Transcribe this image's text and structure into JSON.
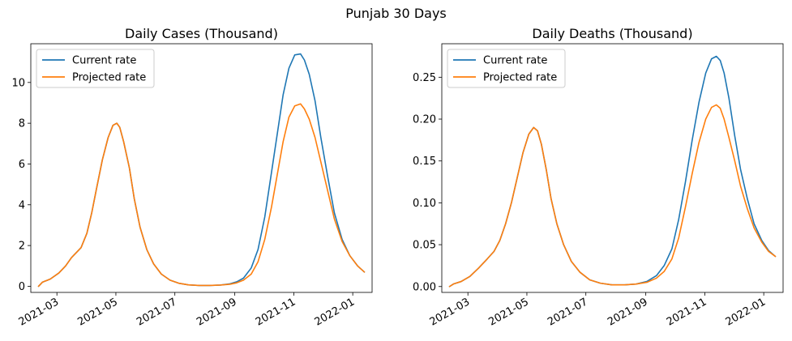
{
  "figure": {
    "suptitle": "Punjab 30 Days"
  },
  "colors": {
    "current": "#1f77b4",
    "projected": "#ff7f0e"
  },
  "chart_data": [
    {
      "type": "line",
      "title": "Daily Cases (Thousand)",
      "xlabel": "",
      "ylabel": "",
      "x_type": "date",
      "xlim": [
        "2021-02-02",
        "2022-01-21"
      ],
      "ylim": [
        -0.3,
        11.9
      ],
      "x_ticks": [
        "2021-03-01",
        "2021-05-01",
        "2021-07-01",
        "2021-09-01",
        "2021-11-01",
        "2022-01-01"
      ],
      "x_tick_labels": [
        "2021-03",
        "2021-05",
        "2021-07",
        "2021-09",
        "2021-11",
        "2022-01"
      ],
      "y_ticks": [
        0,
        2,
        4,
        6,
        8,
        10
      ],
      "y_tick_labels": [
        "0",
        "2",
        "4",
        "6",
        "8",
        "10"
      ],
      "legend": {
        "position": "top-left"
      },
      "grid": false,
      "series": [
        {
          "name": "Current rate",
          "x": [
            "2021-02-10",
            "2021-02-14",
            "2021-02-22",
            "2021-03-03",
            "2021-03-10",
            "2021-03-16",
            "2021-03-22",
            "2021-03-26",
            "2021-04-01",
            "2021-04-06",
            "2021-04-11",
            "2021-04-17",
            "2021-04-23",
            "2021-04-28",
            "2021-05-02",
            "2021-05-05",
            "2021-05-09",
            "2021-05-15",
            "2021-05-20",
            "2021-05-26",
            "2021-06-02",
            "2021-06-09",
            "2021-06-17",
            "2021-06-26",
            "2021-07-05",
            "2021-07-15",
            "2021-07-26",
            "2021-08-06",
            "2021-08-17",
            "2021-08-27",
            "2021-09-03",
            "2021-09-10",
            "2021-09-18",
            "2021-09-25",
            "2021-10-02",
            "2021-10-09",
            "2021-10-15",
            "2021-10-21",
            "2021-10-27",
            "2021-11-02",
            "2021-11-08",
            "2021-11-12",
            "2021-11-17",
            "2021-11-23",
            "2021-11-29",
            "2021-12-06",
            "2021-12-13",
            "2021-12-21",
            "2021-12-29",
            "2022-01-06",
            "2022-01-13"
          ],
          "values": [
            0.0,
            0.2,
            0.35,
            0.65,
            1.0,
            1.4,
            1.7,
            1.9,
            2.6,
            3.6,
            4.8,
            6.2,
            7.3,
            7.9,
            8.0,
            7.8,
            7.1,
            5.8,
            4.3,
            2.9,
            1.8,
            1.1,
            0.6,
            0.3,
            0.15,
            0.07,
            0.04,
            0.04,
            0.06,
            0.12,
            0.22,
            0.4,
            0.9,
            1.8,
            3.4,
            5.6,
            7.5,
            9.4,
            10.7,
            11.35,
            11.4,
            11.1,
            10.4,
            9.1,
            7.3,
            5.4,
            3.6,
            2.3,
            1.5,
            1.0,
            0.7
          ]
        },
        {
          "name": "Projected rate",
          "x": [
            "2021-02-10",
            "2021-02-14",
            "2021-02-22",
            "2021-03-03",
            "2021-03-10",
            "2021-03-16",
            "2021-03-22",
            "2021-03-26",
            "2021-04-01",
            "2021-04-06",
            "2021-04-11",
            "2021-04-17",
            "2021-04-23",
            "2021-04-28",
            "2021-05-02",
            "2021-05-05",
            "2021-05-09",
            "2021-05-15",
            "2021-05-20",
            "2021-05-26",
            "2021-06-02",
            "2021-06-09",
            "2021-06-17",
            "2021-06-26",
            "2021-07-05",
            "2021-07-15",
            "2021-07-26",
            "2021-08-06",
            "2021-08-17",
            "2021-08-27",
            "2021-09-03",
            "2021-09-10",
            "2021-09-18",
            "2021-09-25",
            "2021-10-02",
            "2021-10-09",
            "2021-10-15",
            "2021-10-21",
            "2021-10-27",
            "2021-11-02",
            "2021-11-08",
            "2021-11-12",
            "2021-11-17",
            "2021-11-23",
            "2021-11-29",
            "2021-12-06",
            "2021-12-13",
            "2021-12-21",
            "2021-12-29",
            "2022-01-06",
            "2022-01-13"
          ],
          "values": [
            0.0,
            0.2,
            0.35,
            0.65,
            1.0,
            1.4,
            1.7,
            1.9,
            2.6,
            3.6,
            4.8,
            6.2,
            7.3,
            7.9,
            8.0,
            7.8,
            7.1,
            5.8,
            4.3,
            2.9,
            1.8,
            1.1,
            0.6,
            0.3,
            0.15,
            0.07,
            0.04,
            0.04,
            0.06,
            0.1,
            0.17,
            0.3,
            0.6,
            1.2,
            2.3,
            3.9,
            5.5,
            7.1,
            8.3,
            8.85,
            8.95,
            8.7,
            8.2,
            7.3,
            6.1,
            4.7,
            3.3,
            2.2,
            1.5,
            1.0,
            0.7
          ]
        }
      ]
    },
    {
      "type": "line",
      "title": "Daily Deaths (Thousand)",
      "xlabel": "",
      "ylabel": "",
      "x_type": "date",
      "xlim": [
        "2021-02-02",
        "2022-01-21"
      ],
      "ylim": [
        -0.007,
        0.29
      ],
      "x_ticks": [
        "2021-03-01",
        "2021-05-01",
        "2021-07-01",
        "2021-09-01",
        "2021-11-01",
        "2022-01-01"
      ],
      "x_tick_labels": [
        "2021-03",
        "2021-05",
        "2021-07",
        "2021-09",
        "2021-11",
        "2022-01"
      ],
      "y_ticks": [
        0.0,
        0.05,
        0.1,
        0.15,
        0.2,
        0.25
      ],
      "y_tick_labels": [
        "0.00",
        "0.05",
        "0.10",
        "0.15",
        "0.20",
        "0.25"
      ],
      "legend": {
        "position": "top-left"
      },
      "grid": false,
      "series": [
        {
          "name": "Current rate",
          "x": [
            "2021-02-10",
            "2021-02-14",
            "2021-02-22",
            "2021-03-03",
            "2021-03-12",
            "2021-03-21",
            "2021-03-28",
            "2021-04-03",
            "2021-04-09",
            "2021-04-15",
            "2021-04-21",
            "2021-04-27",
            "2021-05-03",
            "2021-05-08",
            "2021-05-12",
            "2021-05-16",
            "2021-05-21",
            "2021-05-26",
            "2021-06-01",
            "2021-06-08",
            "2021-06-16",
            "2021-06-25",
            "2021-07-05",
            "2021-07-16",
            "2021-07-28",
            "2021-08-10",
            "2021-08-22",
            "2021-09-02",
            "2021-09-12",
            "2021-09-20",
            "2021-09-28",
            "2021-10-05",
            "2021-10-12",
            "2021-10-19",
            "2021-10-26",
            "2021-11-02",
            "2021-11-08",
            "2021-11-13",
            "2021-11-17",
            "2021-11-21",
            "2021-11-26",
            "2021-12-02",
            "2021-12-08",
            "2021-12-15",
            "2021-12-22",
            "2021-12-30",
            "2022-01-06",
            "2022-01-13"
          ],
          "values": [
            0.0,
            0.003,
            0.006,
            0.012,
            0.022,
            0.033,
            0.042,
            0.055,
            0.075,
            0.1,
            0.13,
            0.16,
            0.182,
            0.19,
            0.186,
            0.17,
            0.14,
            0.105,
            0.075,
            0.05,
            0.03,
            0.017,
            0.008,
            0.004,
            0.002,
            0.002,
            0.003,
            0.006,
            0.013,
            0.025,
            0.045,
            0.08,
            0.125,
            0.175,
            0.22,
            0.255,
            0.272,
            0.275,
            0.27,
            0.255,
            0.225,
            0.18,
            0.14,
            0.105,
            0.075,
            0.055,
            0.043,
            0.036
          ]
        },
        {
          "name": "Projected rate",
          "x": [
            "2021-02-10",
            "2021-02-14",
            "2021-02-22",
            "2021-03-03",
            "2021-03-12",
            "2021-03-21",
            "2021-03-28",
            "2021-04-03",
            "2021-04-09",
            "2021-04-15",
            "2021-04-21",
            "2021-04-27",
            "2021-05-03",
            "2021-05-08",
            "2021-05-12",
            "2021-05-16",
            "2021-05-21",
            "2021-05-26",
            "2021-06-01",
            "2021-06-08",
            "2021-06-16",
            "2021-06-25",
            "2021-07-05",
            "2021-07-16",
            "2021-07-28",
            "2021-08-10",
            "2021-08-22",
            "2021-09-02",
            "2021-09-12",
            "2021-09-20",
            "2021-09-28",
            "2021-10-05",
            "2021-10-12",
            "2021-10-19",
            "2021-10-26",
            "2021-11-02",
            "2021-11-08",
            "2021-11-13",
            "2021-11-17",
            "2021-11-21",
            "2021-11-26",
            "2021-12-02",
            "2021-12-08",
            "2021-12-15",
            "2021-12-22",
            "2021-12-30",
            "2022-01-06",
            "2022-01-13"
          ],
          "values": [
            0.0,
            0.003,
            0.006,
            0.012,
            0.022,
            0.033,
            0.042,
            0.055,
            0.075,
            0.1,
            0.13,
            0.16,
            0.182,
            0.19,
            0.186,
            0.17,
            0.14,
            0.105,
            0.075,
            0.05,
            0.03,
            0.017,
            0.008,
            0.004,
            0.002,
            0.002,
            0.003,
            0.005,
            0.01,
            0.018,
            0.033,
            0.058,
            0.095,
            0.135,
            0.172,
            0.2,
            0.214,
            0.217,
            0.213,
            0.2,
            0.178,
            0.15,
            0.12,
            0.093,
            0.07,
            0.053,
            0.042,
            0.036
          ]
        }
      ]
    }
  ]
}
